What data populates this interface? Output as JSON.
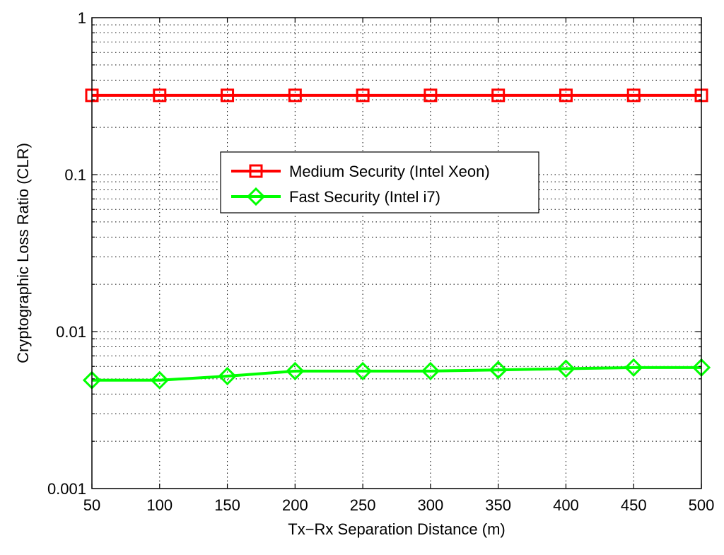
{
  "chart_data": {
    "type": "line",
    "title": "",
    "xlabel": "Tx−Rx Separation Distance (m)",
    "ylabel": "Cryptographic Loss Ratio (CLR)",
    "x": [
      50,
      100,
      150,
      200,
      250,
      300,
      350,
      400,
      450,
      500
    ],
    "xlim": [
      50,
      500
    ],
    "ylim": [
      0.001,
      1
    ],
    "yscale": "log",
    "xticks": [
      "50",
      "100",
      "150",
      "200",
      "250",
      "300",
      "350",
      "400",
      "450",
      "500"
    ],
    "yticks": [
      {
        "value": 0.001,
        "label": "0.001"
      },
      {
        "value": 0.01,
        "label": "0.01"
      },
      {
        "value": 0.1,
        "label": "0.1"
      },
      {
        "value": 1,
        "label": "1"
      }
    ],
    "grid": true,
    "legend_position": "center",
    "series": [
      {
        "name": "Medium Security (Intel Xeon)",
        "color": "#ff0000",
        "marker": "square",
        "values": [
          0.32,
          0.32,
          0.32,
          0.32,
          0.32,
          0.32,
          0.32,
          0.32,
          0.32,
          0.32
        ]
      },
      {
        "name": "Fast Security (Intel i7)",
        "color": "#00ff00",
        "marker": "diamond",
        "values": [
          0.0049,
          0.0049,
          0.0052,
          0.0056,
          0.0056,
          0.0056,
          0.0057,
          0.0058,
          0.0059,
          0.0059
        ]
      }
    ]
  }
}
